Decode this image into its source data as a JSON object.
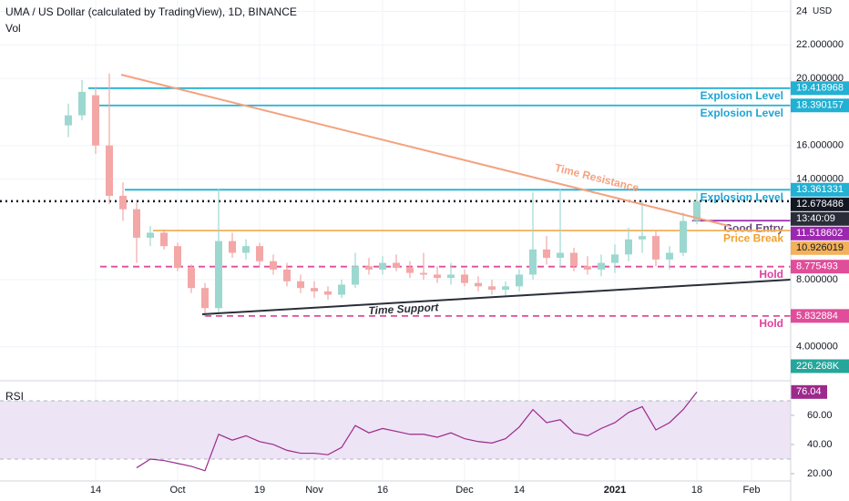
{
  "chart_data": {
    "type": "candlestick",
    "title": "UMA / US Dollar (calculated by TradingView), 1D, BINANCE",
    "subtitle": "Vol",
    "categories": [
      null,
      null,
      "14",
      null,
      null,
      null,
      null,
      null,
      "Oct",
      null,
      null,
      null,
      null,
      null,
      "19",
      null,
      null,
      null,
      "Nov",
      null,
      null,
      null,
      null,
      "16",
      null,
      null,
      null,
      null,
      null,
      "Dec",
      null,
      null,
      null,
      "14",
      null,
      null,
      null,
      null,
      null,
      null,
      "2021",
      null,
      null,
      null,
      null,
      null,
      "18",
      null,
      null,
      null,
      "Feb"
    ],
    "open": [
      17.2,
      17.8,
      19,
      16,
      13,
      12.2,
      10.5,
      10.8,
      10,
      8.7,
      7.5,
      6.3,
      10.3,
      9.6,
      10,
      9.1,
      8.6,
      7.9,
      7.5,
      7.3,
      7.1,
      7.7,
      8.8,
      8.6,
      9,
      8.7,
      8.4,
      8.3,
      8.1,
      8.3,
      7.8,
      7.6,
      7.4,
      7.6,
      8.3,
      9.8,
      9.3,
      9.6,
      8.8,
      8.6,
      9,
      9.5,
      10.4,
      10.6,
      9.2,
      9.6,
      11.5,
      null,
      null,
      null,
      null
    ],
    "high": [
      18.5,
      19.9,
      19.5,
      20.3,
      13.8,
      12.6,
      11.2,
      11,
      10.2,
      8.9,
      7.8,
      13.4,
      10.8,
      10.4,
      10.2,
      9.5,
      9,
      8.3,
      7.9,
      7.6,
      8,
      9.6,
      9.3,
      9.4,
      9.5,
      9.1,
      9.6,
      8.8,
      9,
      8.6,
      8.2,
      8,
      7.9,
      8.6,
      13.2,
      10.6,
      13.4,
      9.9,
      9.4,
      9.5,
      10.1,
      11.1,
      12.7,
      10.9,
      10,
      12,
      13.2,
      null,
      null,
      null,
      null
    ],
    "low": [
      16.5,
      17.5,
      15.5,
      12.5,
      11.5,
      9,
      10,
      9.8,
      8.5,
      7.2,
      5.8,
      6,
      9.3,
      9.2,
      8.8,
      8.3,
      7.6,
      7.2,
      6.9,
      6.8,
      6.9,
      7.5,
      8.3,
      8.3,
      8.5,
      8.1,
      8,
      7.8,
      7.7,
      7.6,
      7.3,
      7.1,
      7,
      7.3,
      8,
      8.9,
      8.7,
      8.5,
      8.3,
      8.2,
      8.4,
      9.1,
      9.6,
      8.8,
      8.6,
      9.4,
      11.3,
      null,
      null,
      null,
      null
    ],
    "close": [
      17.8,
      19.2,
      16,
      13,
      12.2,
      10.5,
      10.8,
      10,
      8.7,
      7.5,
      6.3,
      10.3,
      9.6,
      10,
      9.1,
      8.6,
      7.9,
      7.5,
      7.3,
      7.1,
      7.7,
      8.8,
      8.6,
      9,
      8.7,
      8.4,
      8.3,
      8.1,
      8.3,
      7.8,
      7.6,
      7.4,
      7.6,
      8.3,
      9.8,
      9.3,
      9.6,
      8.8,
      8.6,
      9,
      9.5,
      10.4,
      10.6,
      9.2,
      9.6,
      11.5,
      12.678486,
      null,
      null,
      null,
      null
    ],
    "up_color": "#9cd8cf",
    "down_color": "#f3a7a7",
    "ylim": [
      2.13,
      24.68
    ],
    "yticks": [
      {
        "value": 4,
        "label": "4.000000"
      },
      {
        "value": 8,
        "label": "8.000000"
      },
      {
        "value": 14,
        "label": "14.000000"
      },
      {
        "value": 16,
        "label": "16.000000"
      },
      {
        "value": 20,
        "label": "20.000000"
      },
      {
        "value": 22,
        "label": "22.000000"
      },
      24
    ],
    "unit": "USD",
    "grid": true,
    "levels": [
      {
        "value": 19.418968,
        "color": "#22b0d3",
        "style": "solid",
        "note": "Explosion Level",
        "note_color": "#1fa3d3"
      },
      {
        "value": 18.390157,
        "color": "#22b0d3",
        "style": "solid",
        "note": "Explosion Level",
        "note_color": "#1fa3d3"
      },
      {
        "value": 13.361331,
        "color": "#22b0d3",
        "style": "solid",
        "note": "Explosion Level",
        "note_color": "#1fa3d3"
      },
      {
        "value": 12.678486,
        "color": "#131722",
        "style": "dotted"
      },
      {
        "value": 11.518602,
        "color": "#9c27b0",
        "style": "solid",
        "note": "Good Entry",
        "note_color": "#6a4a78"
      },
      {
        "value": 10.926019,
        "color": "#f2b15a",
        "style": "solid",
        "note": "Price Break",
        "note_color": "#f0a030"
      },
      {
        "value": 8.775493,
        "color": "#e04d9a",
        "style": "dashed",
        "note": "Hold",
        "note_color": "#e040a0"
      },
      {
        "value": 5.832884,
        "color": "#e04d9a",
        "style": "dashed",
        "note": "Hold",
        "note_color": "#e040a0"
      }
    ],
    "countdown": "13:40:09",
    "volume_label": "226.268K",
    "trendlines": [
      "Time Resistance",
      "Time Support"
    ],
    "rsi": {
      "title": "RSI",
      "color": "#9c2a8c",
      "values": [
        null,
        null,
        null,
        null,
        null,
        24,
        30,
        29,
        27,
        25,
        22,
        47,
        43,
        46,
        42,
        40,
        36,
        34,
        34,
        33,
        38,
        53,
        48,
        51,
        49,
        47,
        47,
        45,
        48,
        44,
        42,
        41,
        44,
        52,
        64,
        55,
        57,
        48,
        46,
        51,
        55,
        62,
        66,
        50,
        55,
        64,
        76.04,
        null,
        null,
        null,
        null
      ],
      "ylim": [
        15.6,
        82.5
      ],
      "yticks": [
        {
          "value": 20,
          "label": "20.00"
        },
        {
          "value": 40,
          "label": "40.00"
        },
        {
          "value": 60,
          "label": "60.00"
        }
      ],
      "bands": [
        30,
        70
      ]
    }
  }
}
